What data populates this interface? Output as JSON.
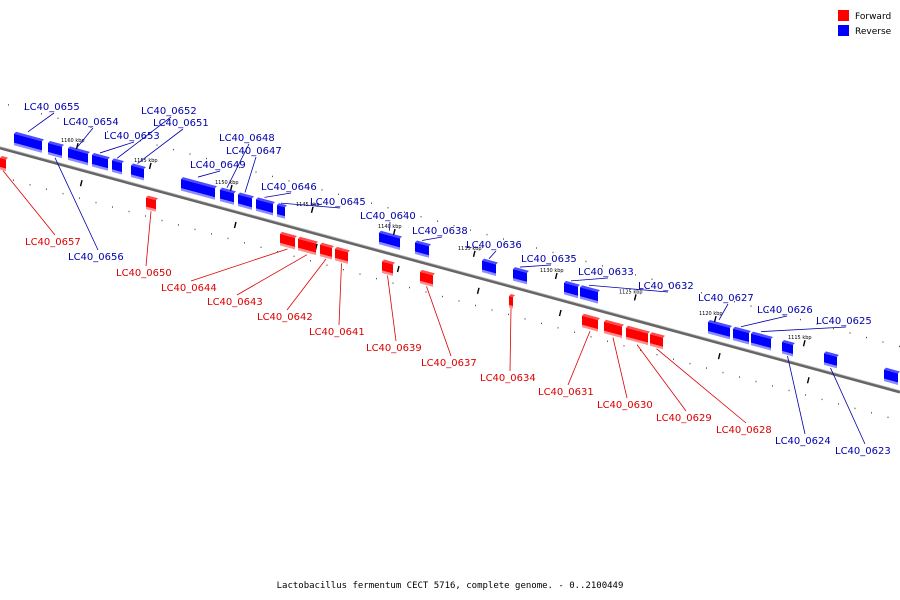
{
  "caption": "Lactobacillus fermentum CECT 5716, complete genome. - 0..2100449",
  "legend": [
    {
      "label": "Forward",
      "color": "#ff0000"
    },
    {
      "label": "Reverse",
      "color": "#0000ff"
    }
  ],
  "colors": {
    "forward": "#ff0000",
    "reverse": "#0000ff",
    "forward_label": "#dd0000",
    "reverse_label": "#0000aa",
    "backbone": "#666666"
  },
  "ticks_major": [
    "1160 kbp",
    "1155 kbp",
    "1150 kbp",
    "1145 kbp",
    "1140 kbp",
    "1135 kbp",
    "1130 kbp",
    "1125 kbp",
    "1120 kbp",
    "1115 kbp"
  ],
  "genes": [
    {
      "id": "LC40_0657",
      "strand": "forward"
    },
    {
      "id": "LC40_0656",
      "strand": "reverse"
    },
    {
      "id": "LC40_0655",
      "strand": "reverse"
    },
    {
      "id": "LC40_0654",
      "strand": "reverse"
    },
    {
      "id": "LC40_0653",
      "strand": "reverse"
    },
    {
      "id": "LC40_0652",
      "strand": "reverse"
    },
    {
      "id": "LC40_0651",
      "strand": "reverse"
    },
    {
      "id": "LC40_0650",
      "strand": "forward"
    },
    {
      "id": "LC40_0649",
      "strand": "reverse"
    },
    {
      "id": "LC40_0648",
      "strand": "reverse"
    },
    {
      "id": "LC40_0647",
      "strand": "reverse"
    },
    {
      "id": "LC40_0646",
      "strand": "reverse"
    },
    {
      "id": "LC40_0645",
      "strand": "reverse"
    },
    {
      "id": "LC40_0644",
      "strand": "forward"
    },
    {
      "id": "LC40_0643",
      "strand": "forward"
    },
    {
      "id": "LC40_0642",
      "strand": "forward"
    },
    {
      "id": "LC40_0641",
      "strand": "forward"
    },
    {
      "id": "LC40_0640",
      "strand": "reverse"
    },
    {
      "id": "LC40_0639",
      "strand": "forward"
    },
    {
      "id": "LC40_0638",
      "strand": "reverse"
    },
    {
      "id": "LC40_0637",
      "strand": "forward"
    },
    {
      "id": "LC40_0636",
      "strand": "reverse"
    },
    {
      "id": "LC40_0635",
      "strand": "reverse"
    },
    {
      "id": "LC40_0634",
      "strand": "forward"
    },
    {
      "id": "LC40_0633",
      "strand": "reverse"
    },
    {
      "id": "LC40_0632",
      "strand": "reverse"
    },
    {
      "id": "LC40_0631",
      "strand": "forward"
    },
    {
      "id": "LC40_0630",
      "strand": "forward"
    },
    {
      "id": "LC40_0629",
      "strand": "forward"
    },
    {
      "id": "LC40_0628",
      "strand": "forward"
    },
    {
      "id": "LC40_0627",
      "strand": "reverse"
    },
    {
      "id": "LC40_0626",
      "strand": "reverse"
    },
    {
      "id": "LC40_0625",
      "strand": "reverse"
    },
    {
      "id": "LC40_0624",
      "strand": "reverse"
    },
    {
      "id": "LC40_0623",
      "strand": "reverse"
    }
  ]
}
